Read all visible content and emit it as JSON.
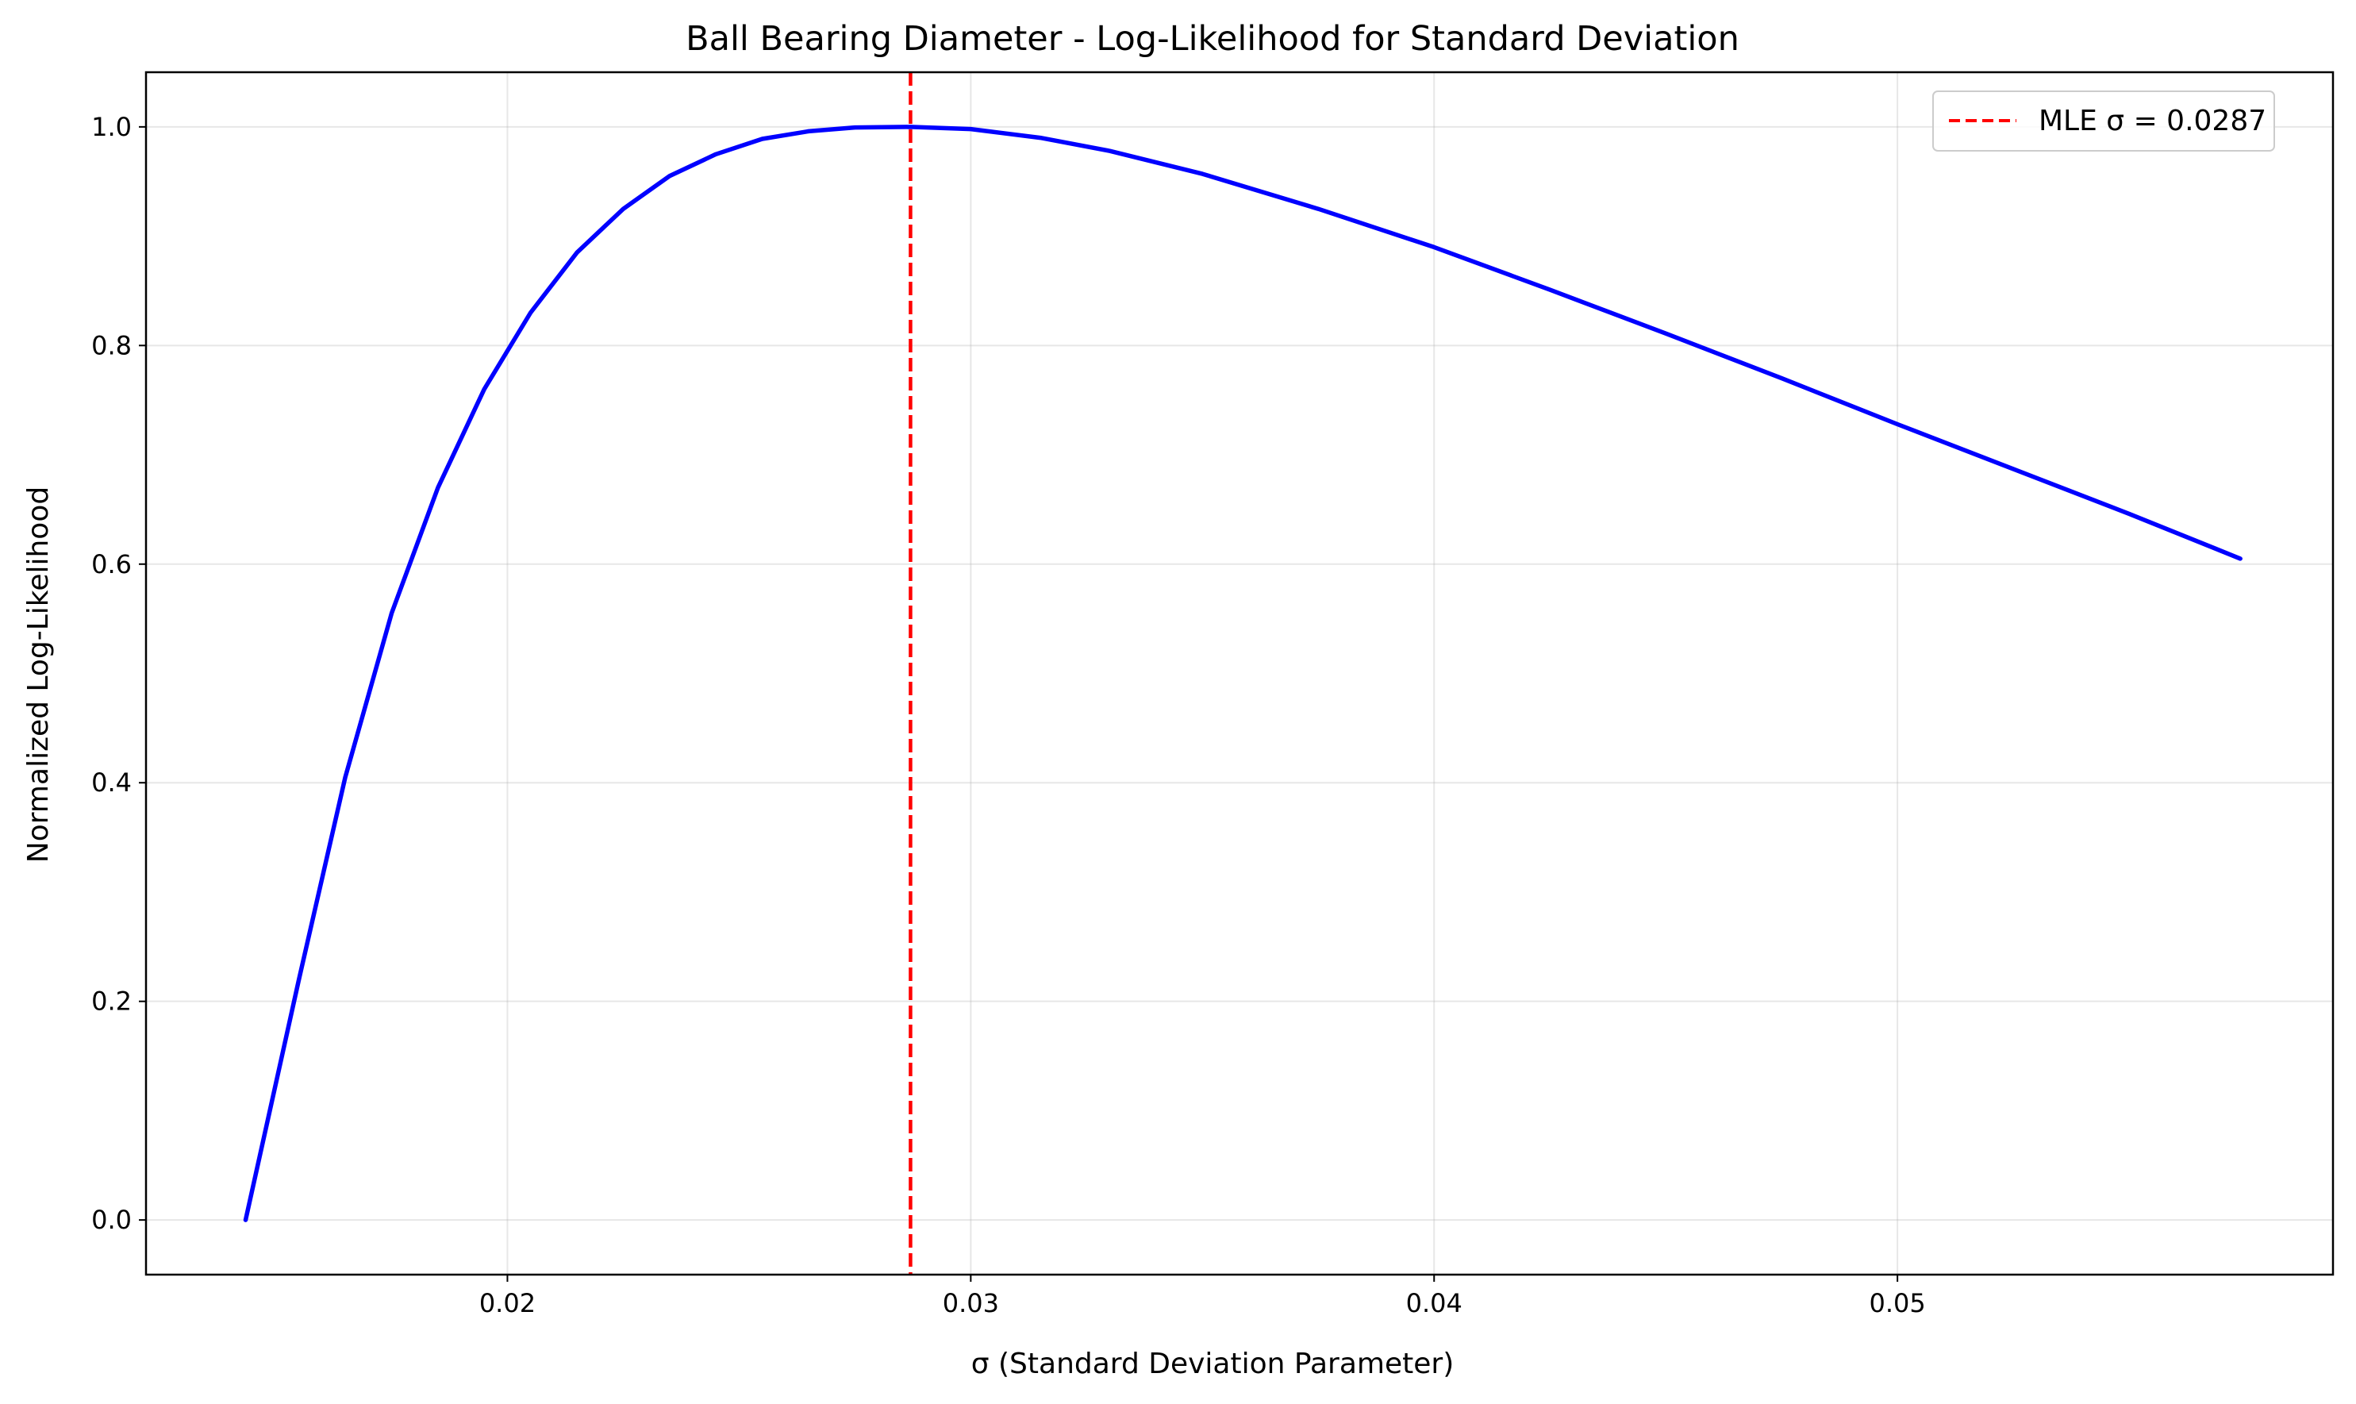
{
  "chart_data": {
    "type": "line",
    "title": "Ball Bearing Diameter - Log-Likelihood for Standard Deviation",
    "xlabel": "σ (Standard Deviation Parameter)",
    "ylabel": "Normalized Log-Likelihood",
    "xlim": [
      0.0122,
      0.0594
    ],
    "ylim": [
      -0.05,
      1.05
    ],
    "x_ticks": [
      0.02,
      0.03,
      0.04,
      0.05
    ],
    "x_tick_labels": [
      "0.02",
      "0.03",
      "0.04",
      "0.05"
    ],
    "y_ticks": [
      0.0,
      0.2,
      0.4,
      0.6,
      0.8,
      1.0
    ],
    "y_tick_labels": [
      "0.0",
      "0.2",
      "0.4",
      "0.6",
      "0.8",
      "1.0"
    ],
    "grid": true,
    "legend_position": "top-right",
    "series": [
      {
        "color": "#0000ff",
        "x": [
          0.01435,
          0.0155,
          0.0165,
          0.0175,
          0.0185,
          0.0195,
          0.0205,
          0.0215,
          0.0225,
          0.0235,
          0.0245,
          0.0255,
          0.0265,
          0.0275,
          0.0287,
          0.03,
          0.0315,
          0.033,
          0.035,
          0.0375,
          0.04,
          0.0425,
          0.045,
          0.0475,
          0.05,
          0.0525,
          0.055,
          0.0574
        ],
        "y": [
          0.0,
          0.22,
          0.405,
          0.555,
          0.67,
          0.76,
          0.83,
          0.885,
          0.925,
          0.955,
          0.975,
          0.989,
          0.996,
          0.9995,
          1.0,
          0.998,
          0.99,
          0.978,
          0.957,
          0.925,
          0.89,
          0.851,
          0.811,
          0.77,
          0.728,
          0.687,
          0.646,
          0.605
        ]
      }
    ],
    "reference_lines": [
      {
        "orientation": "vertical",
        "x": 0.0287,
        "label": "MLE σ = 0.0287",
        "color": "#ff0000",
        "style": "dashed"
      }
    ]
  }
}
